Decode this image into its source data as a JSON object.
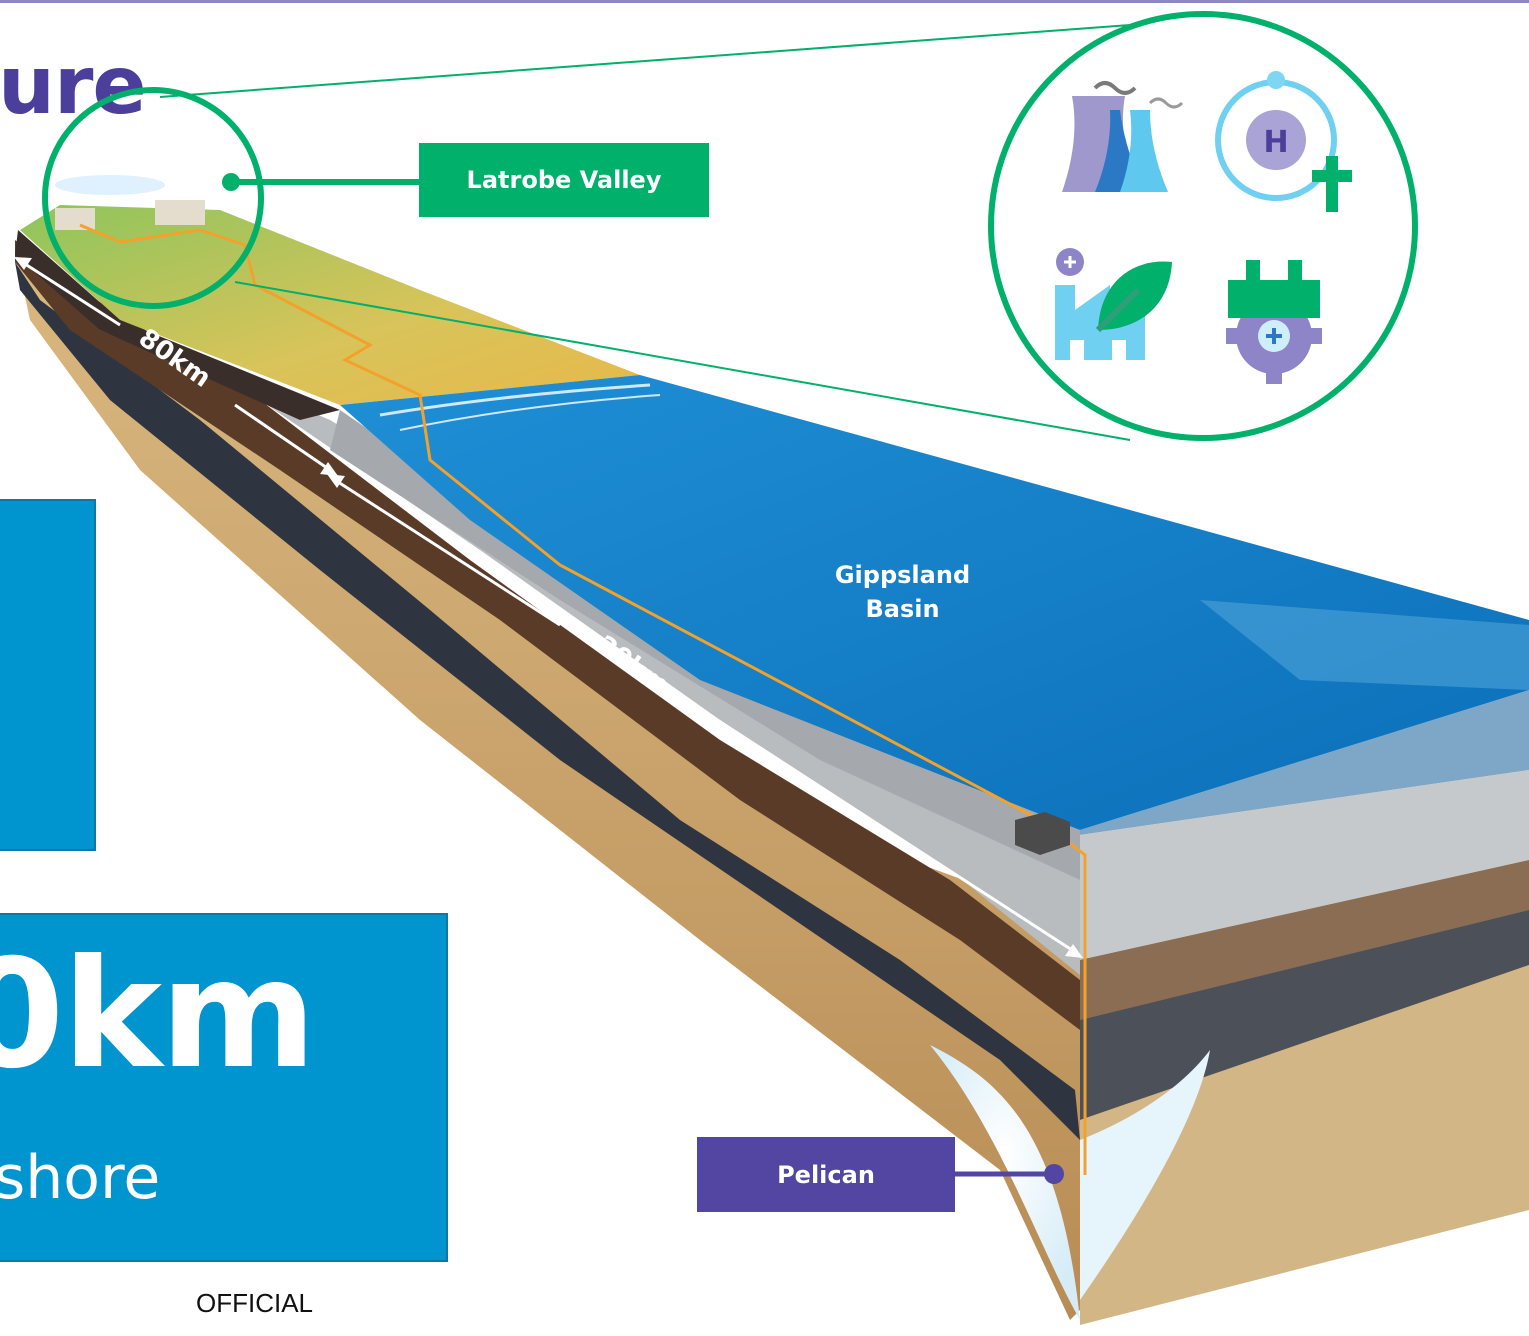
{
  "title": "ure",
  "stat": {
    "value": "0km",
    "caption": "shore"
  },
  "footer": "OFFICIAL",
  "labels": {
    "latrobe": "Latrobe Valley",
    "basin_line1": "Gippsland",
    "basin_line2": "Basin",
    "pelican": "Pelican",
    "distance_onshore": "80km",
    "distance_offshore": "20km"
  },
  "icons": [
    "power-station-icon",
    "hydrogen-icon",
    "factory-leaf-icon",
    "gear-plus-icon"
  ],
  "colors": {
    "title": "#4b3f9b",
    "stat_box": "#0095cf",
    "green_accent": "#00b06b",
    "purple_accent": "#5346a2",
    "sea": "#0f7fca",
    "pipeline": "#f2a22c"
  }
}
